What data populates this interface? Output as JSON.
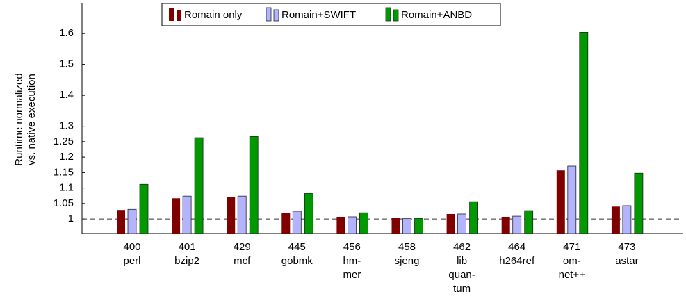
{
  "chart_data": {
    "type": "bar",
    "y_label": [
      "Runtime normalized",
      "vs. native execution"
    ],
    "categories": [
      [
        "400",
        "perl"
      ],
      [
        "401",
        "bzip2"
      ],
      [
        "429",
        "mcf"
      ],
      [
        "445",
        "gobmk"
      ],
      [
        "456",
        "hm-",
        "mer"
      ],
      [
        "458",
        "sjeng"
      ],
      [
        "462",
        "lib",
        "quan-",
        "tum"
      ],
      [
        "464",
        "h264ref"
      ],
      [
        "471",
        "om-",
        "net++"
      ],
      [
        "473",
        "astar"
      ]
    ],
    "series": [
      {
        "name": "Romain only",
        "color": "#800000",
        "values": [
          1.029,
          1.067,
          1.07,
          1.02,
          1.007,
          1.003,
          1.016,
          1.007,
          1.157,
          1.04
        ]
      },
      {
        "name": "Romain+SWIFT",
        "color": "#b3b3ff",
        "values": [
          1.031,
          1.074,
          1.074,
          1.025,
          1.007,
          1.001,
          1.016,
          1.009,
          1.171,
          1.043
        ]
      },
      {
        "name": "Romain+ANBD",
        "color": "#009900",
        "values": [
          1.112,
          1.263,
          1.267,
          1.083,
          1.02,
          1.002,
          1.056,
          1.027,
          1.604,
          1.148
        ]
      }
    ],
    "ylim": [
      0.953,
      1.697
    ],
    "yticks": [
      1,
      1.05,
      1.1,
      1.15,
      1.2,
      1.25,
      1.3,
      1.4,
      1.5,
      1.6
    ],
    "reference_line": 1,
    "legend": "top"
  }
}
